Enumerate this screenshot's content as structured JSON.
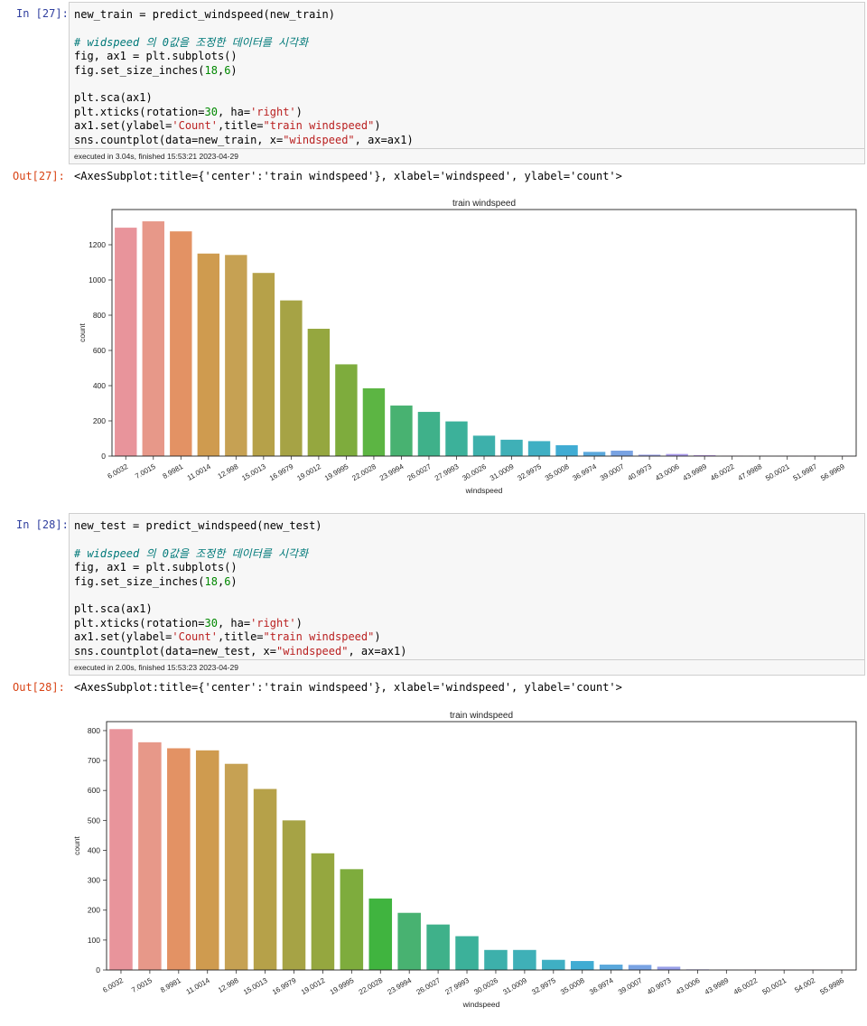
{
  "cells": [
    {
      "in_prompt": "In [27]:",
      "code_lines": [
        [
          [
            "",
            "new_train = predict_windspeed(new_train)"
          ]
        ],
        [],
        [
          [
            "com",
            "# widspeed 의 0값을 조정한 데이터를 시각화"
          ]
        ],
        [
          [
            "",
            "fig, ax1 = plt.subplots()"
          ]
        ],
        [
          [
            "",
            "fig.set_size_inches("
          ],
          [
            "num",
            "18"
          ],
          [
            "",
            ","
          ],
          [
            "num",
            "6"
          ],
          [
            "",
            ")"
          ]
        ],
        [],
        [
          [
            "",
            "plt.sca(ax1)"
          ]
        ],
        [
          [
            "",
            "plt.xticks(rotation="
          ],
          [
            "num",
            "30"
          ],
          [
            "",
            ", ha="
          ],
          [
            "str",
            "'right'"
          ],
          [
            "",
            ")"
          ]
        ],
        [
          [
            "",
            "ax1.set(ylabel="
          ],
          [
            "str",
            "'Count'"
          ],
          [
            "",
            ",title="
          ],
          [
            "str",
            "\"train windspeed\""
          ],
          [
            "",
            ")"
          ]
        ],
        [
          [
            "",
            "sns.countplot(data=new_train, x="
          ],
          [
            "str",
            "\"windspeed\""
          ],
          [
            "",
            ", ax=ax1)"
          ]
        ]
      ],
      "exec_text": "executed in 3.04s, finished 15:53:21 2023-04-29",
      "out_prompt": "Out[27]:",
      "out_text": "<AxesSubplot:title={'center':'train windspeed'}, xlabel='windspeed', ylabel='count'>"
    },
    {
      "in_prompt": "In [28]:",
      "code_lines": [
        [
          [
            "",
            "new_test = predict_windspeed(new_test)"
          ]
        ],
        [],
        [
          [
            "com",
            "# widspeed 의 0값을 조정한 데이터를 시각화"
          ]
        ],
        [
          [
            "",
            "fig, ax1 = plt.subplots()"
          ]
        ],
        [
          [
            "",
            "fig.set_size_inches("
          ],
          [
            "num",
            "18"
          ],
          [
            "",
            ","
          ],
          [
            "num",
            "6"
          ],
          [
            "",
            ")"
          ]
        ],
        [],
        [
          [
            "",
            "plt.sca(ax1)"
          ]
        ],
        [
          [
            "",
            "plt.xticks(rotation="
          ],
          [
            "num",
            "30"
          ],
          [
            "",
            ", ha="
          ],
          [
            "str",
            "'right'"
          ],
          [
            "",
            ")"
          ]
        ],
        [
          [
            "",
            "ax1.set(ylabel="
          ],
          [
            "str",
            "'Count'"
          ],
          [
            "",
            ",title="
          ],
          [
            "str",
            "\"train windspeed\""
          ],
          [
            "",
            ")"
          ]
        ],
        [
          [
            "",
            "sns.countplot(data=new_test, x="
          ],
          [
            "str",
            "\"windspeed\""
          ],
          [
            "",
            ", ax=ax1)"
          ]
        ]
      ],
      "exec_text": "executed in 2.00s, finished 15:53:23 2023-04-29",
      "out_prompt": "Out[28]:",
      "out_text": "<AxesSubplot:title={'center':'train windspeed'}, xlabel='windspeed', ylabel='count'>"
    }
  ],
  "chart_data": [
    {
      "type": "bar",
      "title": "train windspeed",
      "xlabel": "windspeed",
      "ylabel": "count",
      "ylim": [
        0,
        1400
      ],
      "yticks": [
        0,
        200,
        400,
        600,
        800,
        1000,
        1200
      ],
      "categories": [
        "6.0032",
        "7.0015",
        "8.9981",
        "11.0014",
        "12.998",
        "15.0013",
        "16.9979",
        "19.0012",
        "19.9995",
        "22.0028",
        "23.9994",
        "26.0027",
        "27.9993",
        "30.0026",
        "31.0009",
        "32.9975",
        "35.0008",
        "36.9974",
        "39.0007",
        "40.9973",
        "43.0006",
        "43.9989",
        "46.0022",
        "47.9988",
        "50.0021",
        "51.9987",
        "56.9969"
      ],
      "values": [
        1297,
        1333,
        1276,
        1150,
        1142,
        1040,
        884,
        723,
        521,
        385,
        287,
        251,
        197,
        116,
        93,
        85,
        62,
        24,
        31,
        8,
        12,
        5,
        2,
        1,
        1,
        1,
        1
      ],
      "colors": [
        "#e8949b",
        "#e79889",
        "#e39264",
        "#cf9b4f",
        "#c6a153",
        "#b6a149",
        "#a6a345",
        "#95a73f",
        "#7eac3d",
        "#5cb543",
        "#48b271",
        "#3fb18a",
        "#3cb19a",
        "#3db0ab",
        "#3fb0b7",
        "#3fafc3",
        "#40acd3",
        "#5aa8dc",
        "#79a3e3",
        "#979ee7",
        "#aa9aec",
        "#bb92ec",
        "#d084ea",
        "#dd80e2",
        "#e47fd4",
        "#e780c4",
        "#ea82b0"
      ]
    },
    {
      "type": "bar",
      "title": "train windspeed",
      "xlabel": "windspeed",
      "ylabel": "count",
      "ylim": [
        0,
        830
      ],
      "yticks": [
        0,
        100,
        200,
        300,
        400,
        500,
        600,
        700,
        800
      ],
      "categories": [
        "6.0032",
        "7.0015",
        "8.9981",
        "11.0014",
        "12.998",
        "15.0013",
        "16.9979",
        "19.0012",
        "19.9995",
        "22.0028",
        "23.9994",
        "26.0027",
        "27.9993",
        "30.0026",
        "31.0009",
        "32.9975",
        "35.0008",
        "36.9974",
        "39.0007",
        "40.9973",
        "43.0006",
        "43.9989",
        "46.0022",
        "50.0021",
        "54.002",
        "55.9986"
      ],
      "values": [
        805,
        761,
        741,
        734,
        689,
        605,
        500,
        390,
        337,
        239,
        191,
        152,
        113,
        67,
        67,
        34,
        30,
        18,
        17,
        11,
        2,
        1,
        1,
        1,
        1,
        1
      ],
      "colors": [
        "#e8949b",
        "#e79889",
        "#e39264",
        "#cf9b4f",
        "#c6a153",
        "#b6a149",
        "#a6a345",
        "#95a73f",
        "#7eac3d",
        "#40b43f",
        "#48b271",
        "#3fb18a",
        "#3cb19a",
        "#3db0ab",
        "#3fb0b7",
        "#3fafc3",
        "#40acd3",
        "#5aa8dc",
        "#79a3e3",
        "#979ee7",
        "#aa9aec",
        "#c08be9",
        "#d084ea",
        "#e47fd4",
        "#e780c4",
        "#ea82b0"
      ]
    }
  ]
}
